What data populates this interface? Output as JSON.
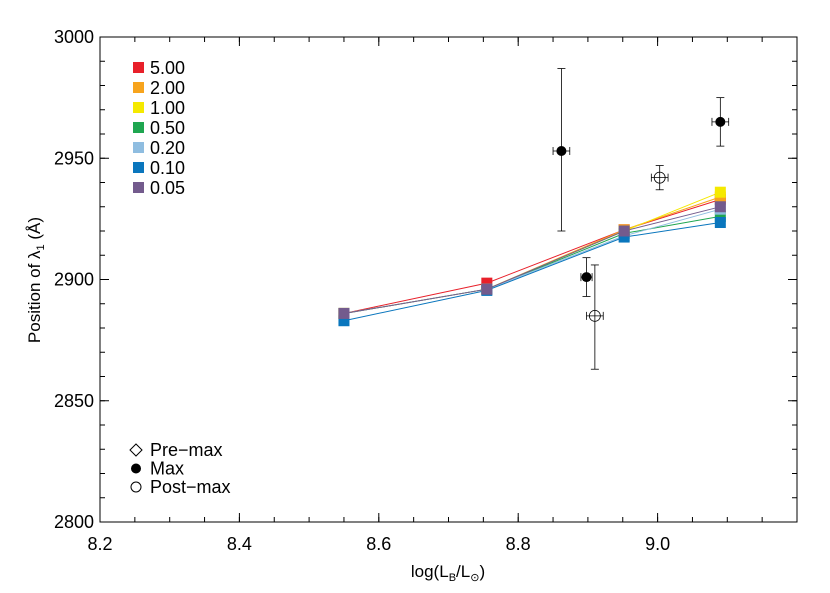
{
  "chart_data": {
    "type": "scatter",
    "title": "",
    "xlabel": {
      "main": "log(L",
      "sub": "B",
      "mid": "/L",
      "sub2": "⊙",
      "end": ")"
    },
    "ylabel": {
      "main": "Position of λ",
      "sub": "1",
      "end": " (Å)"
    },
    "xlim": [
      8.2,
      9.2
    ],
    "ylim": [
      2800,
      3000
    ],
    "xticks": [
      8.2,
      8.4,
      8.6,
      8.8,
      9.0
    ],
    "xtick_labels": [
      "8.2",
      "8.4",
      "8.6",
      "8.8",
      "9.0"
    ],
    "yticks": [
      2800,
      2850,
      2900,
      2950,
      3000
    ],
    "ytick_labels": [
      "2800",
      "2850",
      "2900",
      "2950",
      "3000"
    ],
    "grid": false,
    "legend_position": "top-left",
    "model_x": [
      8.55,
      8.755,
      8.952,
      9.09
    ],
    "model_series": [
      {
        "name": "5.00",
        "color": "#e8202a",
        "values": [
          2886,
          2898.5,
          2920.5,
          2933
        ]
      },
      {
        "name": "2.00",
        "color": "#f7a41d",
        "values": [
          2886,
          2896,
          2920.5,
          2934
        ]
      },
      {
        "name": "1.00",
        "color": "#f5e900",
        "values": [
          2886,
          2896,
          2920,
          2936
        ]
      },
      {
        "name": "0.50",
        "color": "#1fa650",
        "values": [
          2886,
          2896,
          2919,
          2926
        ]
      },
      {
        "name": "0.20",
        "color": "#8fbde0",
        "values": [
          2886,
          2896,
          2918,
          2929
        ]
      },
      {
        "name": "0.10",
        "color": "#0a76bd",
        "values": [
          2883,
          2895.5,
          2917.5,
          2923.5
        ]
      },
      {
        "name": "0.05",
        "color": "#735b8d",
        "values": [
          2886,
          2896,
          2920,
          2930
        ]
      }
    ],
    "observations": [
      {
        "x": 8.862,
        "y": 2953,
        "xerr": 0.012,
        "yerr_low": 33,
        "yerr_high": 34,
        "phase": "max"
      },
      {
        "x": 8.898,
        "y": 2901,
        "xerr": 0.008,
        "yerr_low": 8,
        "yerr_high": 8,
        "phase": "max"
      },
      {
        "x": 9.09,
        "y": 2965,
        "xerr": 0.012,
        "yerr_low": 10,
        "yerr_high": 10,
        "phase": "max"
      },
      {
        "x": 8.91,
        "y": 2885,
        "xerr": 0.012,
        "yerr_low": 22,
        "yerr_high": 21,
        "phase": "post-max"
      },
      {
        "x": 9.003,
        "y": 2942,
        "xerr": 0.012,
        "yerr_low": 5,
        "yerr_high": 5,
        "phase": "post-max"
      }
    ],
    "phase_legend": [
      {
        "key": "pre-max",
        "label": "Pre−max",
        "marker": "diamond-open"
      },
      {
        "key": "max",
        "label": "Max",
        "marker": "circle-filled"
      },
      {
        "key": "post-max",
        "label": "Post−max",
        "marker": "circle-open"
      }
    ]
  }
}
